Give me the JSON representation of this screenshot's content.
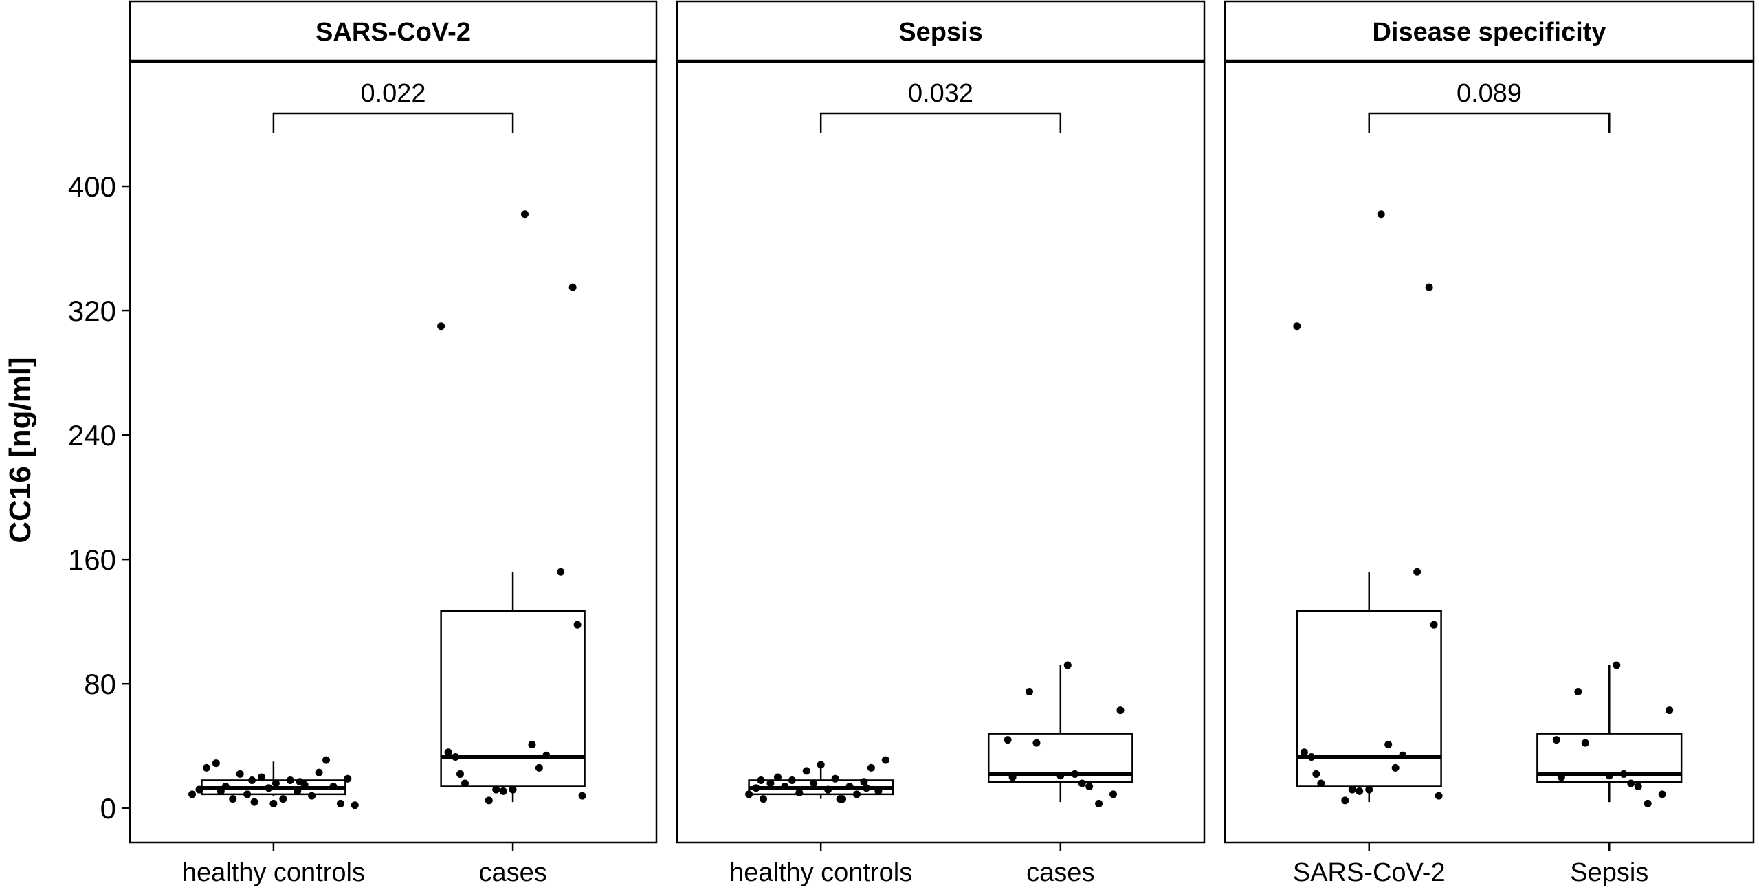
{
  "chart_data": {
    "type": "box",
    "ylabel": "CC16 [ng/ml]",
    "ylim": [
      -22,
      480
    ],
    "yticks": [
      0,
      80,
      160,
      240,
      320,
      400
    ],
    "colors": {
      "box_fill": "#ffffff",
      "line": "#000000",
      "point": "#000000",
      "background": "#ffffff"
    },
    "panels": [
      {
        "title": "SARS-CoV-2",
        "pvalue": "0.022",
        "groups": [
          {
            "label": "healthy controls",
            "box": {
              "lower": 8,
              "q1": 9,
              "median": 13,
              "q3": 18,
              "upper": 30
            },
            "points": [
              [
                -0.34,
                9
              ],
              [
                -0.31,
                12
              ],
              [
                -0.28,
                26
              ],
              [
                -0.24,
                29
              ],
              [
                -0.2,
                14
              ],
              [
                -0.17,
                6
              ],
              [
                -0.14,
                22
              ],
              [
                -0.11,
                9
              ],
              [
                -0.08,
                4
              ],
              [
                -0.05,
                20
              ],
              [
                -0.02,
                13
              ],
              [
                0.01,
                16
              ],
              [
                0.04,
                6
              ],
              [
                0.07,
                18
              ],
              [
                0.1,
                11
              ],
              [
                0.13,
                15
              ],
              [
                0.16,
                8
              ],
              [
                0.19,
                23
              ],
              [
                0.22,
                31
              ],
              [
                0.25,
                14
              ],
              [
                0.28,
                3
              ],
              [
                0.31,
                19
              ],
              [
                0.34,
                2
              ],
              [
                -0.22,
                11
              ],
              [
                0.0,
                3
              ],
              [
                0.11,
                17
              ],
              [
                -0.09,
                18
              ]
            ]
          },
          {
            "label": "cases",
            "box": {
              "lower": 4,
              "q1": 14,
              "median": 33,
              "q3": 127,
              "upper": 152
            },
            "points": [
              [
                -0.3,
                310
              ],
              [
                -0.27,
                36
              ],
              [
                -0.24,
                33
              ],
              [
                -0.22,
                22
              ],
              [
                -0.2,
                16
              ],
              [
                -0.1,
                5
              ],
              [
                -0.07,
                12
              ],
              [
                -0.04,
                11
              ],
              [
                0.0,
                12
              ],
              [
                0.05,
                382
              ],
              [
                0.08,
                41
              ],
              [
                0.11,
                26
              ],
              [
                0.14,
                34
              ],
              [
                0.2,
                152
              ],
              [
                0.25,
                335
              ],
              [
                0.27,
                118
              ],
              [
                0.29,
                8
              ]
            ]
          }
        ]
      },
      {
        "title": "Sepsis",
        "pvalue": "0.032",
        "groups": [
          {
            "label": "healthy controls",
            "box": {
              "lower": 6,
              "q1": 9,
              "median": 13,
              "q3": 18,
              "upper": 30
            },
            "points": [
              [
                -0.3,
                9
              ],
              [
                -0.27,
                13
              ],
              [
                -0.24,
                6
              ],
              [
                -0.21,
                16
              ],
              [
                -0.18,
                20
              ],
              [
                -0.15,
                14
              ],
              [
                -0.12,
                18
              ],
              [
                -0.09,
                10
              ],
              [
                -0.06,
                24
              ],
              [
                -0.03,
                16
              ],
              [
                0.0,
                28
              ],
              [
                0.03,
                12
              ],
              [
                0.06,
                19
              ],
              [
                0.09,
                6
              ],
              [
                0.12,
                14
              ],
              [
                0.15,
                9
              ],
              [
                0.18,
                17
              ],
              [
                0.21,
                26
              ],
              [
                0.24,
                11
              ],
              [
                0.27,
                31
              ],
              [
                -0.25,
                18
              ],
              [
                0.08,
                6
              ],
              [
                0.19,
                13
              ]
            ]
          },
          {
            "label": "cases",
            "box": {
              "lower": 4,
              "q1": 17,
              "median": 22,
              "q3": 48,
              "upper": 92
            },
            "points": [
              [
                -0.22,
                44
              ],
              [
                -0.2,
                20
              ],
              [
                -0.13,
                75
              ],
              [
                -0.1,
                42
              ],
              [
                0.0,
                21
              ],
              [
                0.03,
                92
              ],
              [
                0.06,
                22
              ],
              [
                0.09,
                16
              ],
              [
                0.12,
                14
              ],
              [
                0.16,
                3
              ],
              [
                0.22,
                9
              ],
              [
                0.25,
                63
              ]
            ]
          }
        ]
      },
      {
        "title": "Disease specificity",
        "pvalue": "0.089",
        "groups": [
          {
            "label": "SARS-CoV-2",
            "box": {
              "lower": 4,
              "q1": 14,
              "median": 33,
              "q3": 127,
              "upper": 152
            },
            "points": [
              [
                -0.3,
                310
              ],
              [
                -0.27,
                36
              ],
              [
                -0.24,
                33
              ],
              [
                -0.22,
                22
              ],
              [
                -0.2,
                16
              ],
              [
                -0.1,
                5
              ],
              [
                -0.07,
                12
              ],
              [
                -0.04,
                11
              ],
              [
                0.0,
                12
              ],
              [
                0.05,
                382
              ],
              [
                0.08,
                41
              ],
              [
                0.11,
                26
              ],
              [
                0.14,
                34
              ],
              [
                0.2,
                152
              ],
              [
                0.25,
                335
              ],
              [
                0.27,
                118
              ],
              [
                0.29,
                8
              ]
            ]
          },
          {
            "label": "Sepsis",
            "box": {
              "lower": 4,
              "q1": 17,
              "median": 22,
              "q3": 48,
              "upper": 92
            },
            "points": [
              [
                -0.22,
                44
              ],
              [
                -0.2,
                20
              ],
              [
                -0.13,
                75
              ],
              [
                -0.1,
                42
              ],
              [
                0.0,
                21
              ],
              [
                0.03,
                92
              ],
              [
                0.06,
                22
              ],
              [
                0.09,
                16
              ],
              [
                0.12,
                14
              ],
              [
                0.16,
                3
              ],
              [
                0.22,
                9
              ],
              [
                0.25,
                63
              ]
            ]
          }
        ]
      }
    ]
  }
}
